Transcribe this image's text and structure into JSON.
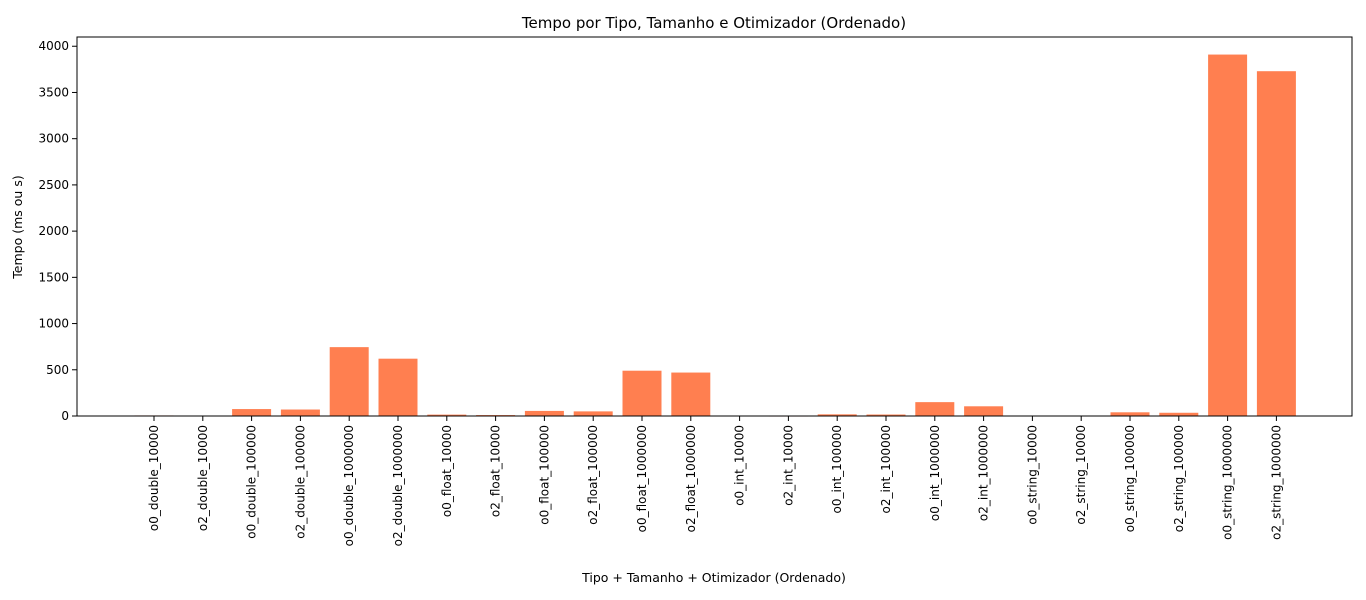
{
  "chart_data": {
    "type": "bar",
    "title": "Tempo por Tipo, Tamanho e Otimizador (Ordenado)",
    "xlabel": "Tipo + Tamanho + Otimizador (Ordenado)",
    "ylabel": "Tempo (ms ou s)",
    "ylim": [
      0,
      4100
    ],
    "yticks": [
      0,
      500,
      1000,
      1500,
      2000,
      2500,
      3000,
      3500,
      4000
    ],
    "grid": false,
    "bar_color": "#ff7f50",
    "categories": [
      "o0_double_10000",
      "o2_double_10000",
      "o0_double_100000",
      "o2_double_100000",
      "o0_double_1000000",
      "o2_double_1000000",
      "o0_float_10000",
      "o2_float_10000",
      "o0_float_100000",
      "o2_float_100000",
      "o0_float_1000000",
      "o2_float_1000000",
      "o0_int_10000",
      "o2_int_10000",
      "o0_int_100000",
      "o2_int_100000",
      "o0_int_1000000",
      "o2_int_1000000",
      "o0_string_10000",
      "o2_string_10000",
      "o0_string_100000",
      "o2_string_100000",
      "o0_string_1000000",
      "o2_string_1000000"
    ],
    "values": [
      6,
      5,
      75,
      70,
      745,
      620,
      15,
      10,
      55,
      50,
      490,
      470,
      4,
      3,
      18,
      16,
      150,
      105,
      5,
      4,
      40,
      35,
      3910,
      3730
    ]
  }
}
